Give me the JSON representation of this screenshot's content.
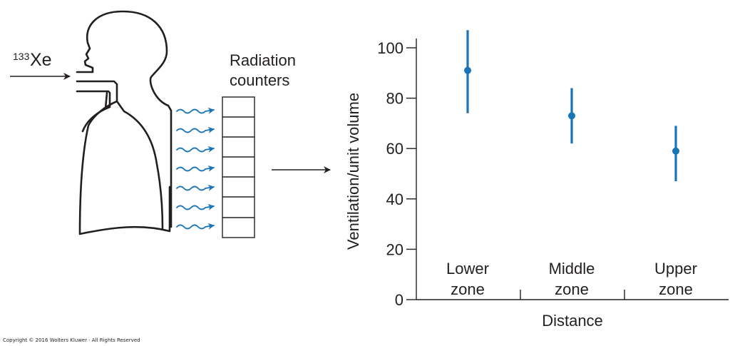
{
  "isotope": {
    "mass_number": "133",
    "symbol": "Xe"
  },
  "detector_label": {
    "line1": "Radiation",
    "line2": "counters"
  },
  "colors": {
    "accent": "#1a75b8",
    "ink": "#231f20"
  },
  "chart_data": {
    "type": "scatter",
    "ylabel": "Ventilation/unit volume",
    "xlabel": "Distance",
    "ylim": [
      0,
      100
    ],
    "yticks": [
      0,
      20,
      40,
      60,
      80,
      100
    ],
    "categories": [
      {
        "line1": "Lower",
        "line2": "zone"
      },
      {
        "line1": "Middle",
        "line2": "zone"
      },
      {
        "line1": "Upper",
        "line2": "zone"
      }
    ],
    "points": [
      {
        "y": 91,
        "low": 74,
        "high": 107
      },
      {
        "y": 73,
        "low": 62,
        "high": 84
      },
      {
        "y": 59,
        "low": 47,
        "high": 69
      }
    ],
    "grid": false
  },
  "copyright": "Copyright © 2016 Wolters Kluwer · All Rights Reserved"
}
